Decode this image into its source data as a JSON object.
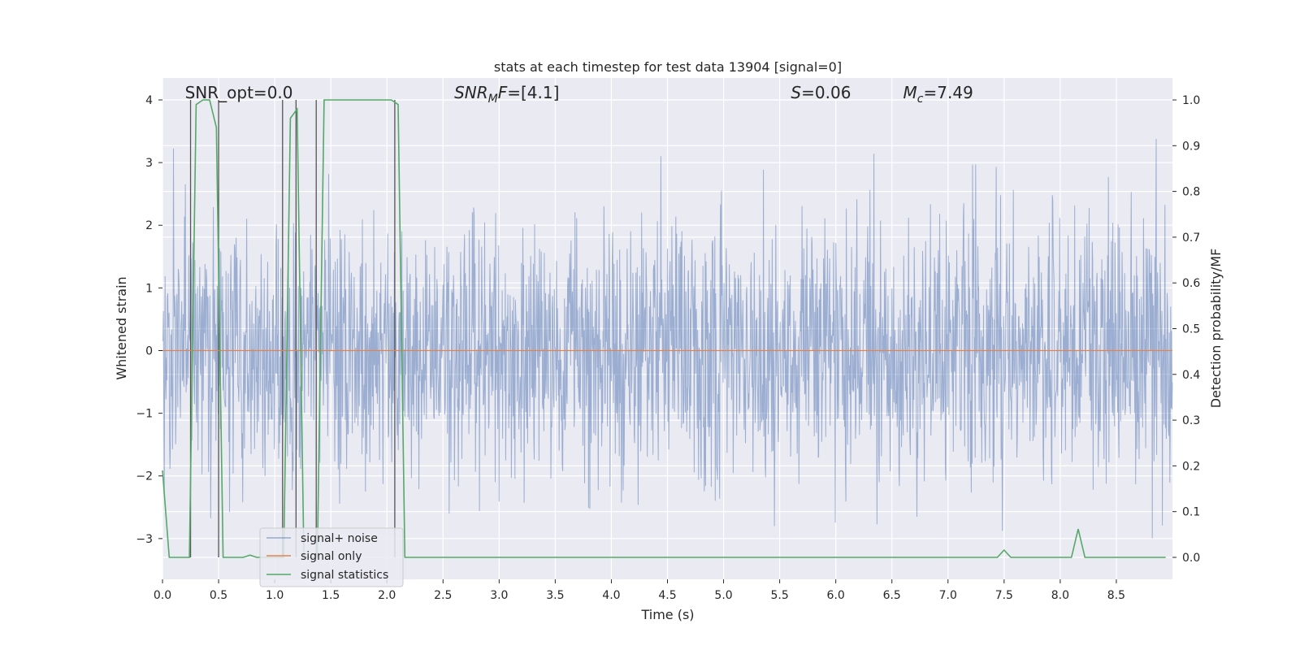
{
  "chart_data": {
    "type": "line",
    "title": "stats at each timestep for test data 13904 [signal=0]",
    "xlabel": "Time (s)",
    "ylabel": "Whitened strain",
    "y2label": "Detection probability/MF",
    "xlim": [
      0.0,
      9.0
    ],
    "ylim": [
      -3.65,
      4.35
    ],
    "y2lim": [
      -0.048,
      1.048
    ],
    "x_ticks": [
      "0.0",
      "0.5",
      "1.0",
      "1.5",
      "2.0",
      "2.5",
      "3.0",
      "3.5",
      "4.0",
      "4.5",
      "5.0",
      "5.5",
      "6.0",
      "6.5",
      "7.0",
      "7.5",
      "8.0",
      "8.5"
    ],
    "y_ticks": [
      "4",
      "3",
      "2",
      "1",
      "0",
      "−1",
      "−2",
      "−3"
    ],
    "y2_ticks": [
      "1.0",
      "0.9",
      "0.8",
      "0.7",
      "0.6",
      "0.5",
      "0.4",
      "0.3",
      "0.2",
      "0.1",
      "0.0"
    ],
    "grid": true,
    "legend_position": "lower left",
    "annotations": [
      {
        "text": "SNR_opt=0.0",
        "x": 0.2,
        "y": 4.0
      },
      {
        "text": "SNR_MF=[4.1]",
        "x": 2.6,
        "y": 4.0
      },
      {
        "text": "S=0.06",
        "x": 5.6,
        "y": 4.0
      },
      {
        "text": "M_c=7.49",
        "x": 6.6,
        "y": 4.0
      }
    ],
    "series": [
      {
        "name": "signal+ noise",
        "color": "#4c72b0",
        "axis": "left",
        "kind": "noise",
        "sample_rate": 256,
        "envelope_max": 3.7,
        "envelope_min": -3.55
      },
      {
        "name": "signal only",
        "color": "#dd8452",
        "axis": "left",
        "x": [
          0.0,
          9.0
        ],
        "y": [
          0.0,
          0.0
        ]
      },
      {
        "name": "signal statistics",
        "color": "#55a868",
        "axis": "right",
        "x": [
          0.0,
          0.06,
          0.12,
          0.18,
          0.24,
          0.3,
          0.36,
          0.42,
          0.48,
          0.54,
          0.6,
          0.66,
          0.72,
          0.78,
          0.84,
          0.9,
          0.96,
          1.02,
          1.08,
          1.14,
          1.2,
          1.26,
          1.32,
          1.38,
          1.44,
          1.5,
          1.56,
          1.62,
          1.68,
          1.74,
          1.8,
          1.86,
          1.92,
          1.98,
          2.04,
          2.1,
          2.16,
          2.22,
          2.28,
          2.34,
          2.4,
          2.46,
          7.38,
          7.44,
          7.5,
          7.56,
          7.62,
          8.04,
          8.1,
          8.16,
          8.22,
          8.28,
          8.94
        ],
        "y": [
          0.19,
          0.0,
          0.0,
          0.0,
          0.0,
          0.99,
          1.0,
          1.0,
          0.94,
          0.0,
          0.0,
          0.0,
          0.0,
          0.005,
          0.0,
          0.0,
          0.0,
          0.0,
          0.0,
          0.96,
          0.98,
          0.0,
          0.0,
          0.0,
          1.0,
          1.0,
          1.0,
          1.0,
          1.0,
          1.0,
          1.0,
          1.0,
          1.0,
          1.0,
          1.0,
          0.99,
          0.0,
          0.0,
          0.0,
          0.0,
          0.0,
          0.0,
          0.0,
          0.0,
          0.016,
          0.0,
          0.0,
          0.0,
          0.0,
          0.062,
          0.0,
          0.0,
          0.0
        ]
      }
    ],
    "vertical_lines": {
      "color": "#555555",
      "x": [
        0.25,
        0.5,
        1.07,
        1.19,
        1.37,
        2.07
      ],
      "ylim_right": [
        0.0,
        1.0
      ]
    }
  }
}
